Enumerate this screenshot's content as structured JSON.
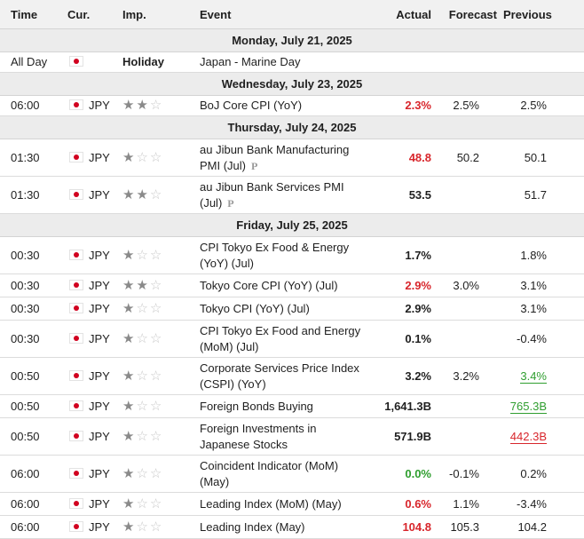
{
  "headers": {
    "time": "Time",
    "cur": "Cur.",
    "imp": "Imp.",
    "event": "Event",
    "actual": "Actual",
    "forecast": "Forecast",
    "previous": "Previous"
  },
  "days": [
    {
      "date": "Monday, July 21, 2025",
      "rows": [
        {
          "time": "All Day",
          "cur": "",
          "holiday": "Holiday",
          "event": "Japan - Marine Day",
          "actual": "",
          "forecast": "",
          "previous": ""
        }
      ]
    },
    {
      "date": "Wednesday, July 23, 2025",
      "rows": [
        {
          "time": "06:00",
          "cur": "JPY",
          "stars": 2,
          "event": "BoJ Core CPI (YoY)",
          "actual": "2.3%",
          "actual_color": "red",
          "forecast": "2.5%",
          "previous": "2.5%"
        }
      ]
    },
    {
      "date": "Thursday, July 24, 2025",
      "rows": [
        {
          "time": "01:30",
          "cur": "JPY",
          "stars": 1,
          "event": "au Jibun Bank Manufacturing PMI (Jul)",
          "prelim": "P",
          "actual": "48.8",
          "actual_color": "red",
          "forecast": "50.2",
          "previous": "50.1"
        },
        {
          "time": "01:30",
          "cur": "JPY",
          "stars": 2,
          "event": "au Jibun Bank Services PMI (Jul)",
          "prelim": "P",
          "actual": "53.5",
          "forecast": "",
          "previous": "51.7"
        }
      ]
    },
    {
      "date": "Friday, July 25, 2025",
      "rows": [
        {
          "time": "00:30",
          "cur": "JPY",
          "stars": 1,
          "event": "CPI Tokyo Ex Food & Energy (YoY) (Jul)",
          "actual": "1.7%",
          "forecast": "",
          "previous": "1.8%"
        },
        {
          "time": "00:30",
          "cur": "JPY",
          "stars": 2,
          "event": "Tokyo Core CPI (YoY) (Jul)",
          "actual": "2.9%",
          "actual_color": "red",
          "forecast": "3.0%",
          "previous": "3.1%"
        },
        {
          "time": "00:30",
          "cur": "JPY",
          "stars": 1,
          "event": "Tokyo CPI (YoY) (Jul)",
          "actual": "2.9%",
          "forecast": "",
          "previous": "3.1%"
        },
        {
          "time": "00:30",
          "cur": "JPY",
          "stars": 1,
          "event": "CPI Tokyo Ex Food and Energy (MoM) (Jul)",
          "actual": "0.1%",
          "forecast": "",
          "previous": "-0.4%"
        },
        {
          "time": "00:50",
          "cur": "JPY",
          "stars": 1,
          "event": "Corporate Services Price Index (CSPI) (YoY)",
          "actual": "3.2%",
          "forecast": "3.2%",
          "previous": "3.4%",
          "previous_style": "under-green"
        },
        {
          "time": "00:50",
          "cur": "JPY",
          "stars": 1,
          "event": "Foreign Bonds Buying",
          "actual": "1,641.3B",
          "forecast": "",
          "previous": "765.3B",
          "previous_style": "under-green"
        },
        {
          "time": "00:50",
          "cur": "JPY",
          "stars": 1,
          "event": "Foreign Investments in Japanese Stocks",
          "actual": "571.9B",
          "forecast": "",
          "previous": "442.3B",
          "previous_style": "under-red"
        },
        {
          "time": "06:00",
          "cur": "JPY",
          "stars": 1,
          "event": "Coincident Indicator (MoM) (May)",
          "actual": "0.0%",
          "actual_color": "green",
          "forecast": "-0.1%",
          "previous": "0.2%"
        },
        {
          "time": "06:00",
          "cur": "JPY",
          "stars": 1,
          "event": "Leading Index (MoM) (May)",
          "actual": "0.6%",
          "actual_color": "red",
          "forecast": "1.1%",
          "previous": "-3.4%"
        },
        {
          "time": "06:00",
          "cur": "JPY",
          "stars": 1,
          "event": "Leading Index (May)",
          "actual": "104.8",
          "actual_color": "red",
          "forecast": "105.3",
          "previous": "104.2"
        }
      ]
    }
  ]
}
